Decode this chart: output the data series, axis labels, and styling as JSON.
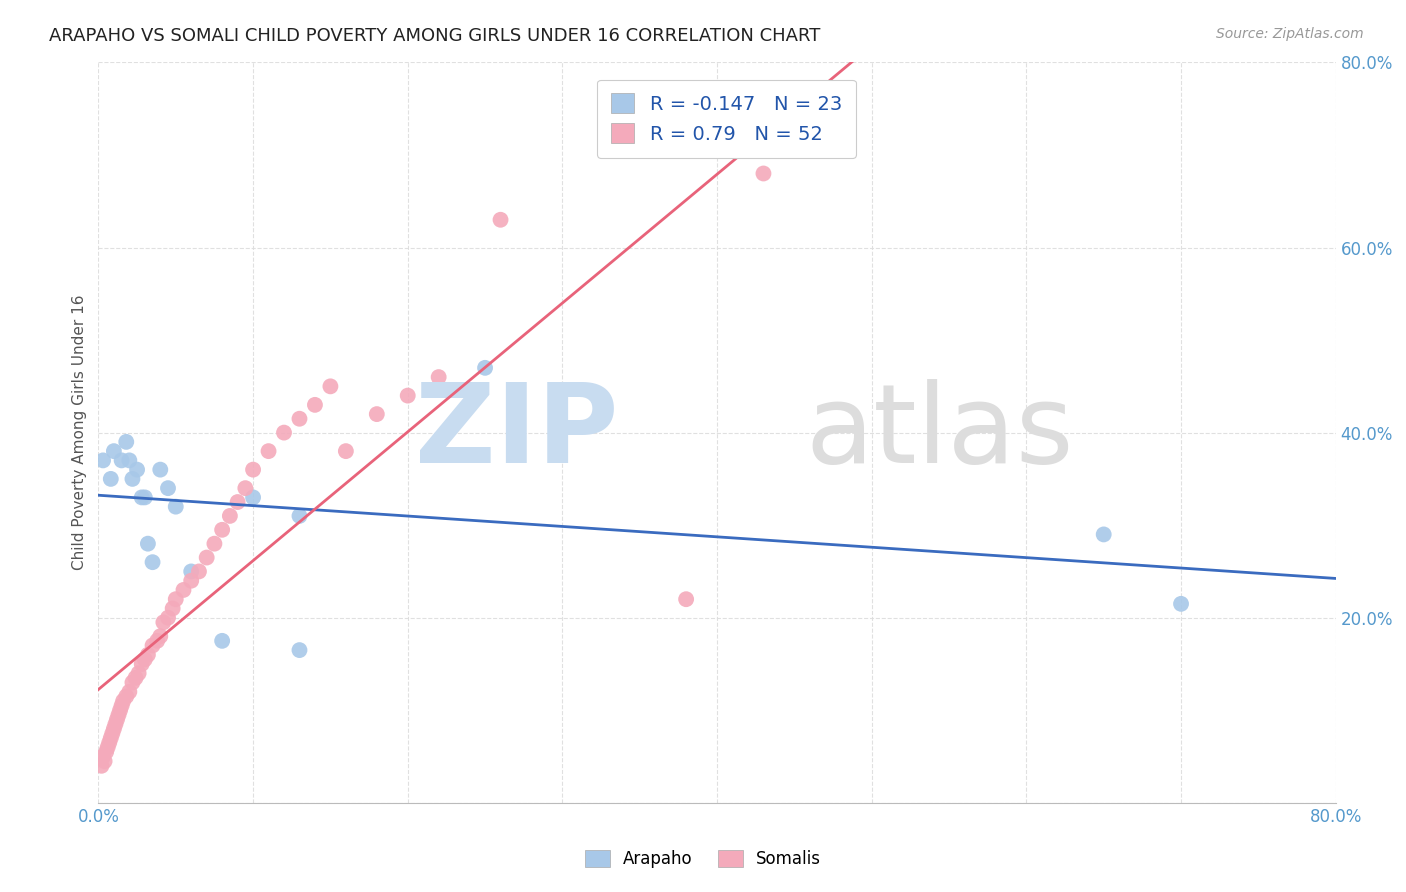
{
  "title": "ARAPAHO VS SOMALI CHILD POVERTY AMONG GIRLS UNDER 16 CORRELATION CHART",
  "source": "Source: ZipAtlas.com",
  "ylabel": "Child Poverty Among Girls Under 16",
  "arapaho_R": -0.147,
  "arapaho_N": 23,
  "somali_R": 0.79,
  "somali_N": 52,
  "arapaho_color": "#A8C8E8",
  "somali_color": "#F4AABB",
  "arapaho_line_color": "#3A6BBF",
  "somali_line_color": "#E8637A",
  "xlim": [
    0.0,
    0.8
  ],
  "ylim": [
    0.0,
    0.8
  ],
  "arapaho_x": [
    0.003,
    0.008,
    0.01,
    0.015,
    0.018,
    0.02,
    0.022,
    0.025,
    0.028,
    0.03,
    0.032,
    0.035,
    0.04,
    0.045,
    0.05,
    0.06,
    0.08,
    0.1,
    0.13,
    0.13,
    0.25,
    0.65,
    0.7
  ],
  "arapaho_y": [
    0.37,
    0.35,
    0.38,
    0.37,
    0.39,
    0.37,
    0.35,
    0.36,
    0.33,
    0.33,
    0.28,
    0.26,
    0.36,
    0.34,
    0.32,
    0.25,
    0.175,
    0.33,
    0.31,
    0.165,
    0.47,
    0.29,
    0.215
  ],
  "somali_x": [
    0.002,
    0.003,
    0.004,
    0.005,
    0.006,
    0.007,
    0.008,
    0.009,
    0.01,
    0.011,
    0.012,
    0.013,
    0.014,
    0.015,
    0.016,
    0.018,
    0.02,
    0.022,
    0.024,
    0.026,
    0.028,
    0.03,
    0.032,
    0.035,
    0.038,
    0.04,
    0.042,
    0.045,
    0.048,
    0.05,
    0.055,
    0.06,
    0.065,
    0.07,
    0.075,
    0.08,
    0.085,
    0.09,
    0.095,
    0.1,
    0.11,
    0.12,
    0.13,
    0.14,
    0.15,
    0.16,
    0.18,
    0.2,
    0.22,
    0.26,
    0.38,
    0.43
  ],
  "somali_y": [
    0.04,
    0.05,
    0.045,
    0.055,
    0.06,
    0.065,
    0.07,
    0.075,
    0.08,
    0.085,
    0.09,
    0.095,
    0.1,
    0.105,
    0.11,
    0.115,
    0.12,
    0.13,
    0.135,
    0.14,
    0.15,
    0.155,
    0.16,
    0.17,
    0.175,
    0.18,
    0.195,
    0.2,
    0.21,
    0.22,
    0.23,
    0.24,
    0.25,
    0.265,
    0.28,
    0.295,
    0.31,
    0.325,
    0.34,
    0.36,
    0.38,
    0.4,
    0.415,
    0.43,
    0.45,
    0.38,
    0.42,
    0.44,
    0.46,
    0.63,
    0.22,
    0.68
  ],
  "background_color": "#FFFFFF",
  "grid_color": "#DDDDDD",
  "title_fontsize": 13,
  "label_fontsize": 11,
  "tick_fontsize": 12,
  "legend_fontsize": 14
}
